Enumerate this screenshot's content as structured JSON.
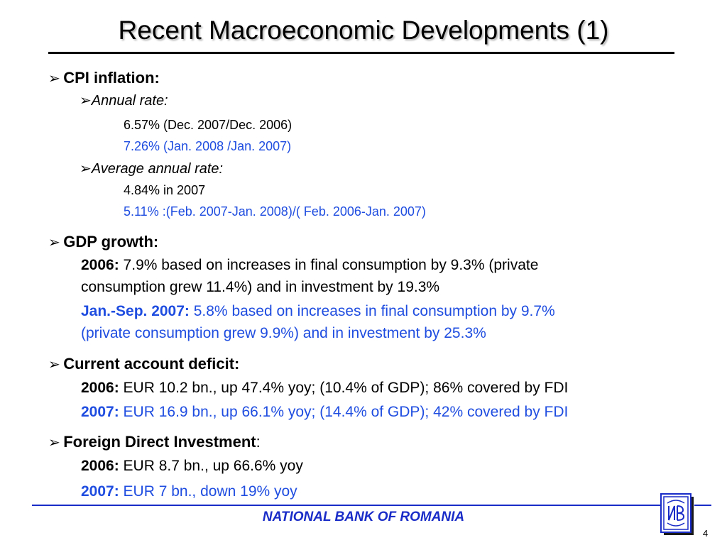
{
  "title": "Recent Macroeconomic Developments (1)",
  "colors": {
    "accent_blue": "#1f4de0",
    "footer_blue": "#1a2cc7",
    "text": "#000000"
  },
  "sections": {
    "cpi": {
      "heading": "CPI inflation:",
      "annual_label": "Annual rate:",
      "annual_1": "6.57% (Dec. 2007/Dec. 2006)",
      "annual_2": "7.26% (Jan. 2008 /Jan. 2007)",
      "average_label": "Average annual rate:",
      "average_1": "4.84% in 2007",
      "average_2": "5.11% :(Feb. 2007-Jan. 2008)/( Feb. 2006-Jan. 2007)"
    },
    "gdp": {
      "heading": "GDP growth:",
      "p2006_label": "2006:",
      "p2006_line1": " 7.9% based on increases in final consumption by 9.3% (private",
      "p2006_line2": "consumption grew 11.4%) and in investment by 19.3%",
      "p2007_label": "Jan.-Sep. 2007:",
      "p2007_line1": " 5.8% based on increases in final consumption by 9.7%",
      "p2007_line2": "(private   consumption grew 9.9%) and in investment by 25.3%"
    },
    "cad": {
      "heading": "Current account deficit:",
      "y2006_label": "2006:",
      "y2006_text": " EUR 10.2 bn., up 47.4% yoy; (10.4% of GDP); 86% covered by FDI",
      "y2007_label": "2007:",
      "y2007_text": " EUR 16.9 bn., up 66.1% yoy; (14.4% of GDP); 42% covered by FDI"
    },
    "fdi": {
      "heading": "Foreign Direct Investment",
      "heading_suffix": ":",
      "y2006_label": "2006:",
      "y2006_text": " EUR 8.7 bn., up 66.6% yoy",
      "y2007_label": "2007:",
      "y2007_text": " EUR 7 bn., down 19% yoy"
    }
  },
  "footer": {
    "org": "NATIONAL BANK OF ROMANIA",
    "page": "4",
    "logo_icon": "nbr-logo-icon"
  }
}
